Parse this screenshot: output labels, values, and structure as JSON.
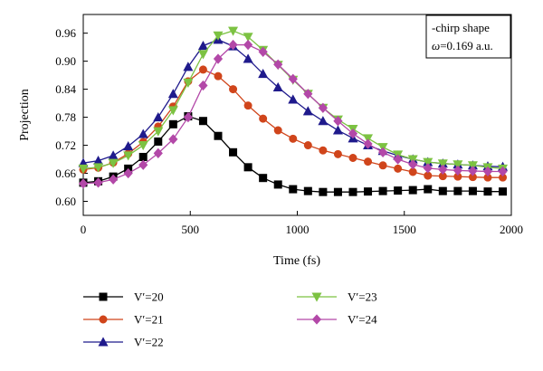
{
  "chart_data": {
    "type": "line",
    "xlabel": "Time (fs)",
    "ylabel": "Projection",
    "xlim": [
      0,
      2000
    ],
    "ylim": [
      0.57,
      1.0
    ],
    "xticks": [
      0,
      500,
      1000,
      1500,
      2000
    ],
    "yticks": [
      0.6,
      0.66,
      0.72,
      0.78,
      0.84,
      0.9,
      0.96
    ],
    "xtick_labels": [
      "0",
      "500",
      "1000",
      "1500",
      "2000"
    ],
    "ytick_labels": [
      "0.60",
      "0.66",
      "0.72",
      "0.78",
      "0.84",
      "0.90",
      "0.96"
    ],
    "grid": false,
    "legend_position": "below",
    "annotation": {
      "line1": "-chirp shape",
      "line2_symbol": "ω",
      "line2_rest": "=0.169 a.u."
    },
    "x": [
      0,
      70,
      140,
      210,
      280,
      350,
      420,
      490,
      560,
      630,
      700,
      770,
      840,
      910,
      980,
      1050,
      1120,
      1190,
      1260,
      1330,
      1400,
      1470,
      1540,
      1610,
      1680,
      1750,
      1820,
      1890,
      1960
    ],
    "series": [
      {
        "name": "V′=20",
        "color": "#000000",
        "marker": "square",
        "values": [
          0.64,
          0.643,
          0.653,
          0.67,
          0.695,
          0.728,
          0.765,
          0.782,
          0.772,
          0.74,
          0.705,
          0.673,
          0.65,
          0.636,
          0.626,
          0.622,
          0.62,
          0.62,
          0.62,
          0.621,
          0.622,
          0.623,
          0.624,
          0.626,
          0.622,
          0.622,
          0.622,
          0.621,
          0.621
        ]
      },
      {
        "name": "V′=21",
        "color": "#d0451b",
        "marker": "circle",
        "values": [
          0.668,
          0.672,
          0.683,
          0.702,
          0.727,
          0.76,
          0.803,
          0.857,
          0.882,
          0.868,
          0.84,
          0.805,
          0.777,
          0.752,
          0.734,
          0.72,
          0.709,
          0.701,
          0.693,
          0.685,
          0.677,
          0.67,
          0.663,
          0.655,
          0.654,
          0.653,
          0.652,
          0.651,
          0.651
        ]
      },
      {
        "name": "V′=22",
        "color": "#1f1a8c",
        "marker": "triangle-up",
        "values": [
          0.682,
          0.687,
          0.698,
          0.718,
          0.744,
          0.78,
          0.83,
          0.888,
          0.933,
          0.946,
          0.932,
          0.905,
          0.873,
          0.844,
          0.818,
          0.793,
          0.772,
          0.752,
          0.735,
          0.72,
          0.708,
          0.698,
          0.69,
          0.684,
          0.681,
          0.679,
          0.677,
          0.675,
          0.674
        ]
      },
      {
        "name": "V′=23",
        "color": "#7cc242",
        "marker": "triangle-down",
        "values": [
          0.67,
          0.673,
          0.682,
          0.698,
          0.72,
          0.75,
          0.795,
          0.854,
          0.915,
          0.955,
          0.965,
          0.952,
          0.924,
          0.892,
          0.86,
          0.83,
          0.8,
          0.775,
          0.755,
          0.735,
          0.716,
          0.7,
          0.69,
          0.684,
          0.681,
          0.679,
          0.677,
          0.673,
          0.67
        ]
      },
      {
        "name": "V′=24",
        "color": "#b348a8",
        "marker": "diamond",
        "values": [
          0.638,
          0.64,
          0.647,
          0.66,
          0.678,
          0.703,
          0.733,
          0.78,
          0.848,
          0.905,
          0.935,
          0.935,
          0.92,
          0.893,
          0.862,
          0.83,
          0.8,
          0.772,
          0.745,
          0.723,
          0.705,
          0.69,
          0.679,
          0.671,
          0.668,
          0.666,
          0.665,
          0.664,
          0.664
        ]
      }
    ]
  }
}
